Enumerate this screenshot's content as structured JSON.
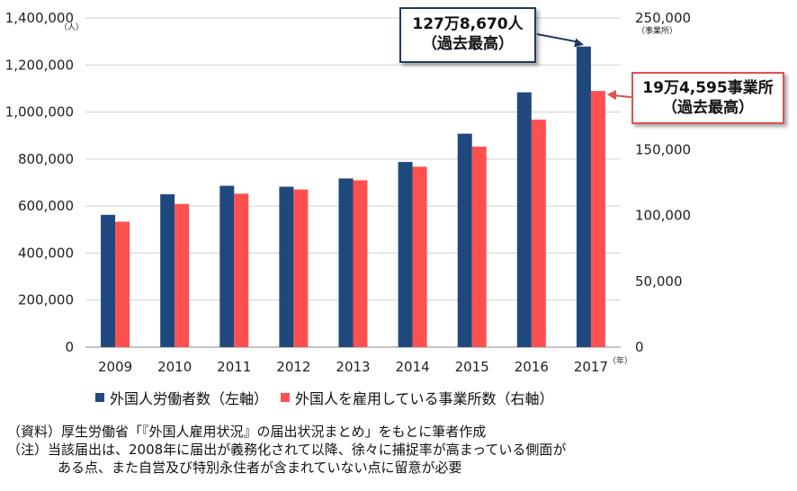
{
  "chart_data": {
    "type": "bar",
    "categories": [
      "2009",
      "2010",
      "2011",
      "2012",
      "2013",
      "2014",
      "2015",
      "2016",
      "2017"
    ],
    "series": [
      {
        "name": "外国人労働者数（左軸）",
        "axis": "left",
        "color": "#1f497d",
        "values": [
          562818,
          649982,
          686246,
          682450,
          717504,
          787627,
          907896,
          1083769,
          1278670
        ]
      },
      {
        "name": "外国人を雇用している事業所数（右軸）",
        "axis": "right",
        "color": "#ff5050",
        "values": [
          95294,
          108760,
          116561,
          119731,
          126729,
          137053,
          152261,
          172798,
          194595
        ]
      }
    ],
    "y_left": {
      "min": 0,
      "max": 1400000,
      "ticks": [
        "0",
        "200,000",
        "400,000",
        "600,000",
        "800,000",
        "1,000,000",
        "1,200,000",
        "1,400,000"
      ],
      "unit": "（人）"
    },
    "y_right": {
      "min": 0,
      "max": 250000,
      "ticks": [
        "0",
        "50,000",
        "100,000",
        "150,000",
        "200,000",
        "250,000"
      ],
      "unit": "（事業所）"
    },
    "x_unit": "（年）",
    "grid": true,
    "legend_position": "bottom"
  },
  "annotations": {
    "workers": {
      "line1": "127万8,670人",
      "line2": "（過去最高）"
    },
    "establishments": {
      "line1": "19万4,595事業所",
      "line2": "（過去最高）"
    }
  },
  "legend": {
    "workers": "外国人労働者数（左軸）",
    "establishments": "外国人を雇用している事業所数（右軸）"
  },
  "notes": {
    "source": "（資料）厚生労働省「『外国人雇用状況』の届出状況まとめ」をもとに筆者作成",
    "note_line1": "（注）当該届出は、2008年に届出が義務化されて以降、徐々に捕捉率が高まっている側面が",
    "note_line2": "ある点、また自営及び特別永住者が含まれていない点に留意が必要"
  }
}
